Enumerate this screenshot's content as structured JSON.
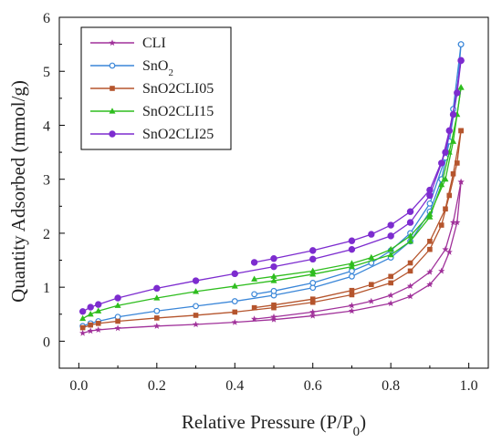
{
  "chart_data": {
    "type": "line",
    "title": "",
    "xlabel": "Relative Pressure (P/P",
    "xlabel_sub": "0",
    "xlabel_close": ")",
    "ylabel": "Quantity Adsorbed (mmol/g)",
    "xlim": [
      -0.05,
      1.05
    ],
    "ylim": [
      -0.5,
      6
    ],
    "xticks": [
      0.0,
      0.2,
      0.4,
      0.6,
      0.8,
      1.0
    ],
    "xtick_labels": [
      "0.0",
      "0.2",
      "0.4",
      "0.6",
      "0.8",
      "1.0"
    ],
    "yticks": [
      0,
      1,
      2,
      3,
      4,
      5,
      6
    ],
    "ytick_labels": [
      "0",
      "1",
      "2",
      "3",
      "4",
      "5",
      "6"
    ],
    "grid": false,
    "legend_position": "top-left",
    "series": [
      {
        "name": "CLI",
        "name_base": "CLI",
        "name_sub": "",
        "color": "#a0319a",
        "marker": "star",
        "adsorption": [
          [
            0.01,
            0.15
          ],
          [
            0.03,
            0.19
          ],
          [
            0.05,
            0.21
          ],
          [
            0.1,
            0.24
          ],
          [
            0.2,
            0.28
          ],
          [
            0.3,
            0.31
          ],
          [
            0.4,
            0.35
          ],
          [
            0.5,
            0.4
          ],
          [
            0.6,
            0.47
          ],
          [
            0.7,
            0.56
          ],
          [
            0.8,
            0.7
          ],
          [
            0.85,
            0.83
          ],
          [
            0.9,
            1.05
          ],
          [
            0.93,
            1.3
          ],
          [
            0.95,
            1.65
          ],
          [
            0.97,
            2.2
          ],
          [
            0.98,
            2.95
          ]
        ],
        "desorption": [
          [
            0.98,
            2.95
          ],
          [
            0.96,
            2.2
          ],
          [
            0.94,
            1.7
          ],
          [
            0.9,
            1.28
          ],
          [
            0.85,
            1.02
          ],
          [
            0.8,
            0.85
          ],
          [
            0.75,
            0.74
          ],
          [
            0.7,
            0.66
          ],
          [
            0.6,
            0.54
          ],
          [
            0.5,
            0.45
          ],
          [
            0.45,
            0.41
          ]
        ]
      },
      {
        "name": "SnO2",
        "name_base": "SnO",
        "name_sub": "2",
        "color": "#3a86d8",
        "marker": "circle-open",
        "adsorption": [
          [
            0.01,
            0.28
          ],
          [
            0.03,
            0.33
          ],
          [
            0.05,
            0.37
          ],
          [
            0.1,
            0.45
          ],
          [
            0.2,
            0.56
          ],
          [
            0.3,
            0.65
          ],
          [
            0.4,
            0.74
          ],
          [
            0.5,
            0.85
          ],
          [
            0.6,
            0.99
          ],
          [
            0.7,
            1.2
          ],
          [
            0.8,
            1.55
          ],
          [
            0.85,
            1.85
          ],
          [
            0.9,
            2.4
          ],
          [
            0.93,
            3.0
          ],
          [
            0.95,
            3.7
          ],
          [
            0.97,
            4.6
          ],
          [
            0.98,
            5.5
          ]
        ],
        "desorption": [
          [
            0.98,
            5.5
          ],
          [
            0.96,
            4.3
          ],
          [
            0.94,
            3.4
          ],
          [
            0.9,
            2.55
          ],
          [
            0.85,
            2.0
          ],
          [
            0.8,
            1.68
          ],
          [
            0.75,
            1.45
          ],
          [
            0.7,
            1.3
          ],
          [
            0.6,
            1.08
          ],
          [
            0.5,
            0.93
          ],
          [
            0.45,
            0.87
          ]
        ]
      },
      {
        "name": "SnO2CLI05",
        "name_base": "SnO2CLI05",
        "name_sub": "",
        "color": "#b5552d",
        "marker": "square",
        "adsorption": [
          [
            0.01,
            0.25
          ],
          [
            0.03,
            0.3
          ],
          [
            0.05,
            0.33
          ],
          [
            0.1,
            0.37
          ],
          [
            0.2,
            0.43
          ],
          [
            0.3,
            0.48
          ],
          [
            0.4,
            0.54
          ],
          [
            0.5,
            0.62
          ],
          [
            0.6,
            0.72
          ],
          [
            0.7,
            0.86
          ],
          [
            0.8,
            1.08
          ],
          [
            0.85,
            1.3
          ],
          [
            0.9,
            1.7
          ],
          [
            0.93,
            2.15
          ],
          [
            0.95,
            2.7
          ],
          [
            0.97,
            3.3
          ],
          [
            0.98,
            3.9
          ]
        ],
        "desorption": [
          [
            0.98,
            3.9
          ],
          [
            0.96,
            3.1
          ],
          [
            0.94,
            2.45
          ],
          [
            0.9,
            1.85
          ],
          [
            0.85,
            1.45
          ],
          [
            0.8,
            1.2
          ],
          [
            0.75,
            1.05
          ],
          [
            0.7,
            0.94
          ],
          [
            0.6,
            0.78
          ],
          [
            0.5,
            0.67
          ],
          [
            0.45,
            0.62
          ]
        ]
      },
      {
        "name": "SnO2CLI15",
        "name_base": "SnO2CLI15",
        "name_sub": "",
        "color": "#2ebd1e",
        "marker": "triangle",
        "adsorption": [
          [
            0.01,
            0.42
          ],
          [
            0.03,
            0.5
          ],
          [
            0.05,
            0.56
          ],
          [
            0.1,
            0.66
          ],
          [
            0.2,
            0.8
          ],
          [
            0.3,
            0.92
          ],
          [
            0.4,
            1.02
          ],
          [
            0.5,
            1.12
          ],
          [
            0.6,
            1.24
          ],
          [
            0.7,
            1.38
          ],
          [
            0.8,
            1.6
          ],
          [
            0.85,
            1.85
          ],
          [
            0.9,
            2.3
          ],
          [
            0.93,
            2.9
          ],
          [
            0.95,
            3.5
          ],
          [
            0.97,
            4.2
          ],
          [
            0.98,
            4.7
          ]
        ],
        "desorption": [
          [
            0.98,
            4.7
          ],
          [
            0.96,
            3.7
          ],
          [
            0.94,
            3.0
          ],
          [
            0.9,
            2.35
          ],
          [
            0.85,
            1.95
          ],
          [
            0.8,
            1.7
          ],
          [
            0.75,
            1.55
          ],
          [
            0.7,
            1.44
          ],
          [
            0.6,
            1.3
          ],
          [
            0.5,
            1.2
          ],
          [
            0.45,
            1.15
          ]
        ]
      },
      {
        "name": "SnO2CLI25",
        "name_base": "SnO2CLI25",
        "name_sub": "",
        "color": "#7d2ccf",
        "marker": "circle",
        "adsorption": [
          [
            0.01,
            0.55
          ],
          [
            0.03,
            0.63
          ],
          [
            0.05,
            0.68
          ],
          [
            0.1,
            0.8
          ],
          [
            0.2,
            0.98
          ],
          [
            0.3,
            1.12
          ],
          [
            0.4,
            1.25
          ],
          [
            0.5,
            1.38
          ],
          [
            0.6,
            1.52
          ],
          [
            0.7,
            1.7
          ],
          [
            0.8,
            1.95
          ],
          [
            0.85,
            2.2
          ],
          [
            0.9,
            2.7
          ],
          [
            0.93,
            3.3
          ],
          [
            0.95,
            3.9
          ],
          [
            0.97,
            4.6
          ],
          [
            0.98,
            5.2
          ]
        ],
        "desorption": [
          [
            0.98,
            5.2
          ],
          [
            0.96,
            4.2
          ],
          [
            0.94,
            3.5
          ],
          [
            0.9,
            2.8
          ],
          [
            0.85,
            2.4
          ],
          [
            0.8,
            2.15
          ],
          [
            0.75,
            1.98
          ],
          [
            0.7,
            1.86
          ],
          [
            0.6,
            1.68
          ],
          [
            0.5,
            1.53
          ],
          [
            0.45,
            1.46
          ]
        ]
      }
    ]
  }
}
